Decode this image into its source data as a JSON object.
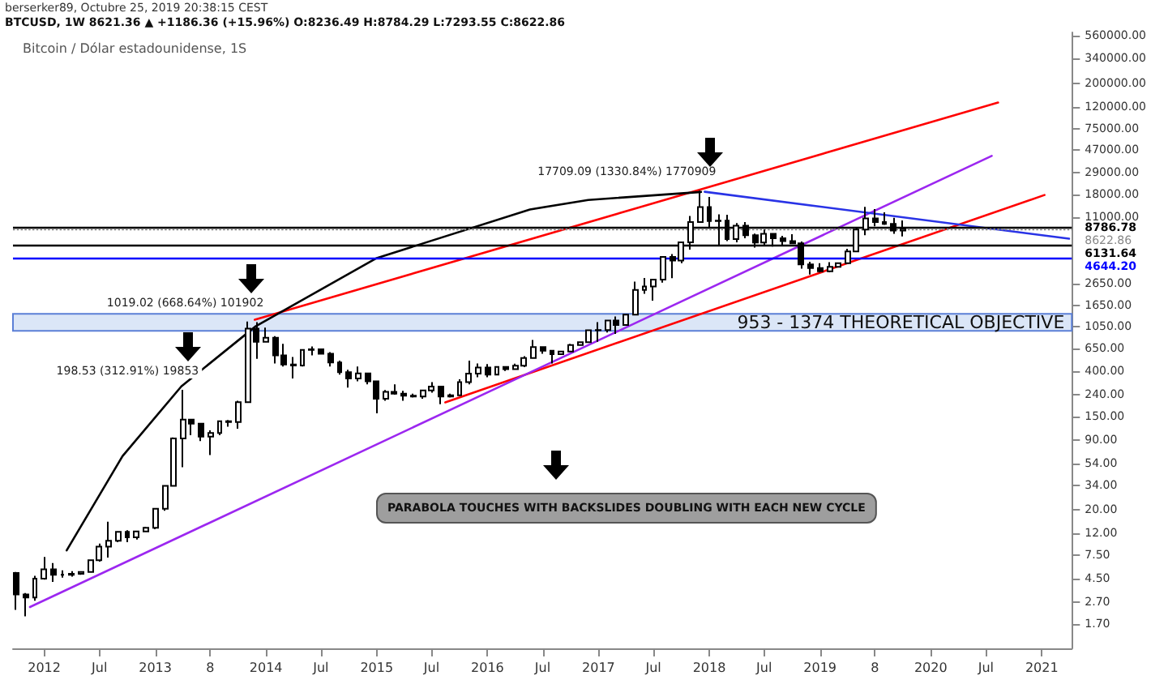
{
  "chart_data": {
    "type": "candlestick",
    "title": "BTCUSD, 1W  8621.36 ▲ +1186.36 (+15.96%) O:8236.49 H:8784.29 L:7293.55 C:8622.86",
    "subtitle": "berserker89, Octubre 25, 2019 20:38:15 CEST",
    "annotations": [
      "Bitcoin / Dólar estadounidense, 1S",
      "PARABOLA TOUCHES WITH BACKSLIDES DOUBLING WITH EACH NEW CYCLE",
      {
        "text": "198.53 (312.91%) 19853",
        "x": "2013-04",
        "y": 266
      },
      {
        "text": "1019.02 (668.64%) 101902",
        "x": "2013-11",
        "y": 1163
      },
      {
        "text": "17709.09 (1330.84%) 1770909",
        "x": "2017-12",
        "y": 19666
      }
    ],
    "series": [
      {
        "color": "#000000",
        "x": [
          "2011-10",
          "2011-11",
          "2011-12",
          "2012-01",
          "2012-02",
          "2012-03",
          "2012-04",
          "2012-05",
          "2012-06",
          "2012-07",
          "2012-08",
          "2012-09",
          "2012-10",
          "2012-11",
          "2012-12",
          "2013-01",
          "2013-02",
          "2013-03",
          "2013-04",
          "2013-05",
          "2013-06",
          "2013-07",
          "2013-08",
          "2013-09",
          "2013-10",
          "2013-11",
          "2013-12",
          "2014-01",
          "2014-02",
          "2014-03",
          "2014-04",
          "2014-05",
          "2014-06",
          "2014-07",
          "2014-08",
          "2014-09",
          "2014-10",
          "2014-11",
          "2014-12",
          "2015-01",
          "2015-02",
          "2015-03",
          "2015-04",
          "2015-05",
          "2015-06",
          "2015-07",
          "2015-08",
          "2015-09",
          "2015-10",
          "2015-11",
          "2015-12",
          "2016-01",
          "2016-02",
          "2016-03",
          "2016-04",
          "2016-05",
          "2016-06",
          "2016-07",
          "2016-08",
          "2016-09",
          "2016-10",
          "2016-11",
          "2016-12",
          "2017-01",
          "2017-02",
          "2017-03",
          "2017-04",
          "2017-05",
          "2017-06",
          "2017-07",
          "2017-08",
          "2017-09",
          "2017-10",
          "2017-11",
          "2017-12",
          "2018-01",
          "2018-02",
          "2018-03",
          "2018-04",
          "2018-05",
          "2018-06",
          "2018-07",
          "2018-08",
          "2018-09",
          "2018-10",
          "2018-11",
          "2018-12",
          "2019-01",
          "2019-02",
          "2019-03",
          "2019-04",
          "2019-05",
          "2019-06",
          "2019-07",
          "2019-08",
          "2019-09",
          "2019-10"
        ],
        "ohlc": [
          [
            5.1,
            5.2,
            2.3,
            3.2
          ],
          [
            3.2,
            3.3,
            2.0,
            3.0
          ],
          [
            3.0,
            4.8,
            2.8,
            4.5
          ],
          [
            4.5,
            7.2,
            4.4,
            5.5
          ],
          [
            5.5,
            6.3,
            4.2,
            4.9
          ],
          [
            4.9,
            5.4,
            4.6,
            4.9
          ],
          [
            4.9,
            5.3,
            4.7,
            5.0
          ],
          [
            5.0,
            5.2,
            4.9,
            5.2
          ],
          [
            5.2,
            6.8,
            5.2,
            6.7
          ],
          [
            6.7,
            9.6,
            6.5,
            9.0
          ],
          [
            9.0,
            15.4,
            7.1,
            10.2
          ],
          [
            10.2,
            12.6,
            9.9,
            12.4
          ],
          [
            12.4,
            12.8,
            9.9,
            11.0
          ],
          [
            11.0,
            12.7,
            10.5,
            12.5
          ],
          [
            12.5,
            13.8,
            12.5,
            13.5
          ],
          [
            13.5,
            20.5,
            13.1,
            20.4
          ],
          [
            20.4,
            33.5,
            19.5,
            33.4
          ],
          [
            33.4,
            95,
            33,
            93
          ],
          [
            93,
            266,
            50,
            140
          ],
          [
            140,
            140,
            100,
            128
          ],
          [
            128,
            130,
            88,
            97
          ],
          [
            97,
            111,
            65,
            105
          ],
          [
            105,
            135,
            100,
            135
          ],
          [
            135,
            139,
            120,
            133
          ],
          [
            133,
            210,
            115,
            204
          ],
          [
            204,
            1163,
            203,
            1000
          ],
          [
            1000,
            1150,
            520,
            750
          ],
          [
            750,
            1020,
            740,
            820
          ],
          [
            820,
            850,
            470,
            560
          ],
          [
            560,
            720,
            440,
            460
          ],
          [
            460,
            540,
            340,
            450
          ],
          [
            450,
            630,
            440,
            630
          ],
          [
            630,
            680,
            560,
            640
          ],
          [
            640,
            650,
            570,
            580
          ],
          [
            580,
            600,
            440,
            480
          ],
          [
            480,
            500,
            370,
            390
          ],
          [
            390,
            410,
            280,
            340
          ],
          [
            340,
            440,
            320,
            380
          ],
          [
            380,
            380,
            300,
            320
          ],
          [
            320,
            320,
            160,
            220
          ],
          [
            220,
            265,
            210,
            255
          ],
          [
            255,
            300,
            240,
            245
          ],
          [
            245,
            260,
            210,
            235
          ],
          [
            235,
            245,
            225,
            230
          ],
          [
            230,
            265,
            220,
            263
          ],
          [
            263,
            315,
            250,
            285
          ],
          [
            285,
            285,
            195,
            230
          ],
          [
            230,
            245,
            225,
            237
          ],
          [
            237,
            335,
            235,
            315
          ],
          [
            315,
            500,
            300,
            378
          ],
          [
            378,
            470,
            350,
            430
          ],
          [
            430,
            465,
            350,
            370
          ],
          [
            370,
            440,
            365,
            437
          ],
          [
            437,
            440,
            400,
            416
          ],
          [
            416,
            468,
            414,
            448
          ],
          [
            448,
            550,
            435,
            530
          ],
          [
            530,
            780,
            530,
            670
          ],
          [
            670,
            680,
            580,
            620
          ],
          [
            620,
            620,
            470,
            575
          ],
          [
            575,
            610,
            570,
            608
          ],
          [
            608,
            720,
            604,
            700
          ],
          [
            700,
            750,
            690,
            745
          ],
          [
            745,
            975,
            740,
            963
          ],
          [
            963,
            1150,
            750,
            970
          ],
          [
            970,
            1210,
            920,
            1190
          ],
          [
            1190,
            1300,
            890,
            1080
          ],
          [
            1080,
            1350,
            1080,
            1350
          ],
          [
            1350,
            2760,
            1350,
            2300
          ],
          [
            2300,
            2980,
            2120,
            2480
          ],
          [
            2480,
            2930,
            1830,
            2875
          ],
          [
            2875,
            4750,
            2700,
            4700
          ],
          [
            4700,
            5000,
            2970,
            4340
          ],
          [
            4340,
            6470,
            4110,
            6450
          ],
          [
            6450,
            11400,
            5500,
            10000
          ],
          [
            10000,
            19666,
            10000,
            13800
          ],
          [
            13800,
            17200,
            9000,
            10200
          ],
          [
            10200,
            11800,
            5900,
            10300
          ],
          [
            10300,
            11700,
            6600,
            6900
          ],
          [
            6900,
            9760,
            6430,
            9240
          ],
          [
            9240,
            9990,
            7040,
            7500
          ],
          [
            7500,
            7770,
            5750,
            6400
          ],
          [
            6400,
            8500,
            6070,
            7730
          ],
          [
            7730,
            7750,
            5880,
            7030
          ],
          [
            7030,
            7410,
            6120,
            6620
          ],
          [
            6620,
            7680,
            6200,
            6300
          ],
          [
            6300,
            6570,
            3650,
            4000
          ],
          [
            4000,
            4240,
            3210,
            3700
          ],
          [
            3700,
            4110,
            3350,
            3440
          ],
          [
            3440,
            4200,
            3370,
            3800
          ],
          [
            3800,
            4100,
            3730,
            4100
          ],
          [
            4100,
            5600,
            4100,
            5300
          ],
          [
            5300,
            9000,
            5300,
            8500
          ],
          [
            8500,
            13880,
            7500,
            10800
          ],
          [
            10800,
            13200,
            9100,
            10000
          ],
          [
            10000,
            12300,
            9400,
            9600
          ],
          [
            9600,
            10950,
            7730,
            8300
          ],
          [
            8300,
            10350,
            7300,
            8622
          ]
        ]
      },
      {
        "type": "line",
        "color": "#ff0000",
        "x": [
          "2013-11-25",
          "2020-08-10"
        ],
        "values": [
          1210,
          132000
        ]
      },
      {
        "type": "line",
        "color": "#ff0000",
        "x": [
          "2015-08-15",
          "2021-01-10"
        ],
        "values": [
          203,
          17900
        ]
      },
      {
        "type": "line",
        "color": "#9c27f0",
        "x": [
          "2011-11-15",
          "2020-07-20"
        ],
        "values": [
          2.44,
          41700
        ]
      },
      {
        "type": "line",
        "color": "#2933e6",
        "x": [
          "2017-12-17",
          "2021-04-01"
        ],
        "values": [
          19200,
          6960
        ]
      },
      {
        "type": "line",
        "color": "#000000",
        "x": [
          "2012-03-15",
          "2012-09-15",
          "2013-03-28",
          "2013-11-28",
          "2015-01-01",
          "2016-05-20",
          "2016-11-28",
          "2017-12-05"
        ],
        "values": [
          8.3,
          63.5,
          287,
          1050,
          4580,
          13100,
          16100,
          19100
        ]
      }
    ],
    "ref_lines": [
      {
        "axis": "y",
        "value": 4644.2,
        "label": "4644.20",
        "color": "#0000ff"
      },
      {
        "axis": "y",
        "value": 6131.64,
        "label": "6131.64",
        "color": "#000000"
      },
      {
        "axis": "y",
        "value": 8786.78,
        "label": "8786.78",
        "color": "#000000"
      },
      {
        "axis": "y",
        "value": 8622.86,
        "label": "8622.86",
        "color": "#888888",
        "line_style": "dotted"
      }
    ],
    "bands": [
      {
        "axis": "y",
        "from": 953,
        "to": 1374,
        "label": "953 - 1374 THEORETICAL OBJECTIVE",
        "color": "#dbe6f7"
      }
    ],
    "log": "y",
    "xlim": [
      "2011-09-20",
      "2021-04-10"
    ],
    "ylim": [
      1,
      600000
    ],
    "xticks": [
      {
        "value": "2012-01-01",
        "label": "2012"
      },
      {
        "value": "2012-07-01",
        "label": "Jul"
      },
      {
        "value": "2013-01-01",
        "label": "2013"
      },
      {
        "value": "2013-07-01",
        "label": "8"
      },
      {
        "value": "2014-01-01",
        "label": "2014"
      },
      {
        "value": "2014-07-01",
        "label": "Jul"
      },
      {
        "value": "2015-01-01",
        "label": "2015"
      },
      {
        "value": "2015-07-01",
        "label": "Jul"
      },
      {
        "value": "2016-01-01",
        "label": "2016"
      },
      {
        "value": "2016-07-01",
        "label": "Jul"
      },
      {
        "value": "2017-01-01",
        "label": "2017"
      },
      {
        "value": "2017-07-01",
        "label": "Jul"
      },
      {
        "value": "2018-01-01",
        "label": "2018"
      },
      {
        "value": "2018-07-01",
        "label": "Jul"
      },
      {
        "value": "2019-01-01",
        "label": "2019"
      },
      {
        "value": "2019-07-01",
        "label": "8"
      },
      {
        "value": "2020-01-01",
        "label": "2020"
      },
      {
        "value": "2020-07-01",
        "label": "Jul"
      },
      {
        "value": "2021-01-01",
        "label": "2021"
      }
    ],
    "yticks": [
      {
        "value": 1.7,
        "label": "1.70"
      },
      {
        "value": 2.7,
        "label": "2.70"
      },
      {
        "value": 4.5,
        "label": "4.50"
      },
      {
        "value": 7.5,
        "label": "7.50"
      },
      {
        "value": 12,
        "label": "12.00"
      },
      {
        "value": 20,
        "label": "20.00"
      },
      {
        "value": 34,
        "label": "34.00"
      },
      {
        "value": 54,
        "label": "54.00"
      },
      {
        "value": 90,
        "label": "90.00"
      },
      {
        "value": 150,
        "label": "150.00"
      },
      {
        "value": 240,
        "label": "240.00"
      },
      {
        "value": 400,
        "label": "400.00"
      },
      {
        "value": 650,
        "label": "650.00"
      },
      {
        "value": 1050,
        "label": "1050.00"
      },
      {
        "value": 1650,
        "label": "1650.00"
      },
      {
        "value": 2650,
        "label": "2650.00"
      },
      {
        "value": 11000,
        "label": "11000.00"
      },
      {
        "value": 18000,
        "label": "18000.00"
      },
      {
        "value": 29000,
        "label": "29000.00"
      },
      {
        "value": 47000,
        "label": "47000.00"
      },
      {
        "value": 75000,
        "label": "75000.00"
      },
      {
        "value": 120000,
        "label": "120000.00"
      },
      {
        "value": 200000,
        "label": "200000.00"
      },
      {
        "value": 340000,
        "label": "340000.00"
      },
      {
        "value": 560000,
        "label": "560000.00"
      }
    ]
  }
}
